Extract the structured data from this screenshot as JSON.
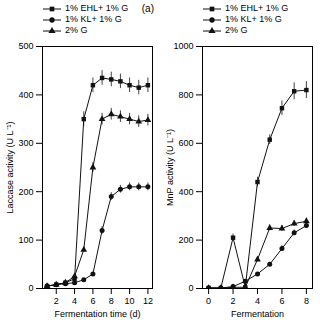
{
  "chart_data": [
    {
      "type": "line",
      "title": "(a)",
      "xlabel": "Fermentation time (d)",
      "ylabel": "Laccase activity (U L⁻¹)",
      "x": [
        1,
        2,
        3,
        4,
        5,
        6,
        7,
        8,
        9,
        10,
        11,
        12
      ],
      "series": [
        {
          "name": "1% EHL+ 1% G",
          "marker": "square",
          "values": [
            5,
            8,
            12,
            20,
            350,
            420,
            435,
            432,
            428,
            420,
            415,
            420
          ],
          "yerr": [
            3,
            3,
            3,
            3,
            15,
            15,
            15,
            15,
            15,
            15,
            15,
            15
          ]
        },
        {
          "name": "1% KL+ 1% G",
          "marker": "circle",
          "values": [
            5,
            8,
            10,
            12,
            18,
            30,
            120,
            190,
            205,
            210,
            210,
            210
          ],
          "yerr": [
            2,
            2,
            2,
            2,
            2,
            3,
            8,
            8,
            8,
            8,
            8,
            8
          ]
        },
        {
          "name": "2% G",
          "marker": "triangle",
          "values": [
            5,
            8,
            12,
            25,
            80,
            250,
            350,
            360,
            355,
            350,
            345,
            348
          ],
          "yerr": [
            2,
            2,
            2,
            3,
            5,
            10,
            12,
            12,
            12,
            12,
            12,
            12
          ]
        }
      ],
      "xlim": [
        0.5,
        12.5
      ],
      "xticks": [
        2,
        4,
        6,
        8,
        10,
        12
      ],
      "ylim": [
        0,
        500
      ],
      "yticks": [
        0,
        100,
        200,
        300,
        400,
        500
      ],
      "color": "#111111",
      "legend": "upper left"
    },
    {
      "type": "line",
      "xlabel": "Fermentation",
      "ylabel": "MnP activity (U L⁻¹)",
      "x": [
        0,
        1,
        2,
        3,
        4,
        5,
        6,
        7,
        8
      ],
      "series": [
        {
          "name": "1% EHL+ 1% G",
          "marker": "square",
          "values": [
            2,
            2,
            210,
            5,
            440,
            615,
            745,
            815,
            820
          ],
          "yerr": [
            2,
            2,
            15,
            2,
            20,
            20,
            30,
            35,
            35
          ]
        },
        {
          "name": "1% KL+ 1% G",
          "marker": "circle",
          "values": [
            2,
            2,
            8,
            30,
            60,
            100,
            165,
            230,
            260
          ],
          "yerr": [
            2,
            2,
            2,
            4,
            6,
            8,
            12,
            12,
            12
          ]
        },
        {
          "name": "2% G",
          "marker": "triangle",
          "values": [
            2,
            2,
            5,
            5,
            120,
            250,
            248,
            268,
            278
          ],
          "yerr": [
            2,
            2,
            2,
            2,
            10,
            12,
            12,
            12,
            12
          ]
        }
      ],
      "xlim": [
        -0.5,
        8.5
      ],
      "xticks": [
        0,
        2,
        4,
        6,
        8
      ],
      "ylim": [
        0,
        1000
      ],
      "yticks": [
        0,
        200,
        400,
        600,
        800,
        1000
      ],
      "color": "#111111",
      "legend": "upper left"
    }
  ]
}
